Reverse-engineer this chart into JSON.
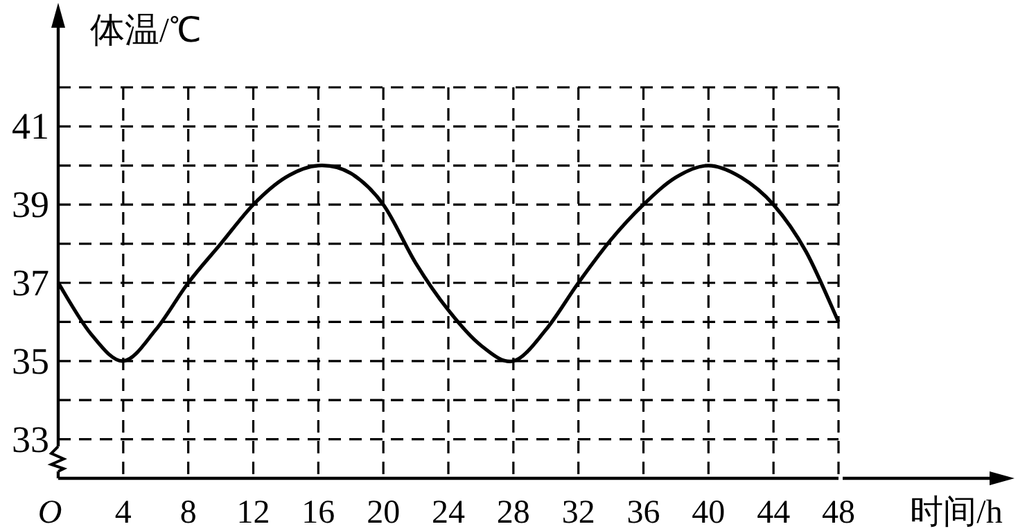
{
  "chart_data": {
    "type": "line",
    "xlabel": "时间/h",
    "ylabel": "体温/℃",
    "x": [
      0,
      2,
      4,
      6,
      8,
      10,
      12,
      14,
      16,
      18,
      20,
      22,
      24,
      26,
      28,
      30,
      32,
      34,
      36,
      38,
      40,
      42,
      44,
      46,
      48
    ],
    "series": [
      {
        "color": "#000000",
        "values": [
          37,
          35.7,
          35,
          35.8,
          37,
          38,
          39,
          39.7,
          40,
          39.8,
          39,
          37.5,
          36.3,
          35.4,
          35,
          35.8,
          37,
          38.1,
          39,
          39.7,
          40,
          39.7,
          39,
          37.8,
          36
        ]
      }
    ],
    "xlim": [
      0,
      48
    ],
    "ylim": [
      32,
      42
    ],
    "xticks": [
      {
        "value": 0,
        "label": "O"
      },
      4,
      8,
      12,
      16,
      20,
      24,
      28,
      32,
      36,
      40,
      44,
      48
    ],
    "yticks": [
      33,
      {
        "value": 34,
        "label": null
      },
      35,
      {
        "value": 36,
        "label": null
      },
      37,
      {
        "value": 38,
        "label": null
      },
      39,
      {
        "value": 40,
        "label": null
      },
      41,
      {
        "value": 42,
        "label": null
      }
    ],
    "grid": true,
    "marker": "none",
    "line_style": "solid"
  }
}
